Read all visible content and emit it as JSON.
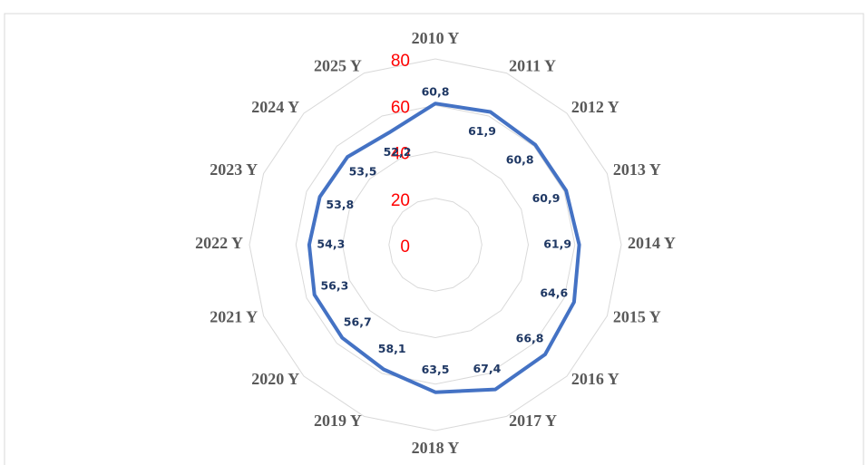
{
  "chart_data": {
    "type": "radar",
    "categories": [
      "2010 Y",
      "2011 Y",
      "2012 Y",
      "2013 Y",
      "2014 Y",
      "2015 Y",
      "2016 Y",
      "2017 Y",
      "2018 Y",
      "2019 Y",
      "2020 Y",
      "2021 Y",
      "2022 Y",
      "2023 Y",
      "2024 Y",
      "2025 Y"
    ],
    "series": [
      {
        "color": "#4472c4",
        "values": [
          60.8,
          61.9,
          60.8,
          60.9,
          61.9,
          64.6,
          66.8,
          67.4,
          63.5,
          58.1,
          56.7,
          56.3,
          54.3,
          53.8,
          53.5,
          52.2
        ],
        "value_labels": [
          "60,8",
          "61,9",
          "60,8",
          "60,9",
          "61,9",
          "64,6",
          "66,8",
          "67,4",
          "63,5",
          "58,1",
          "56,7",
          "56,3",
          "54,3",
          "53,8",
          "53,5",
          "52,2"
        ]
      }
    ],
    "ylim": [
      0,
      80
    ],
    "yticks": [
      0,
      20,
      40,
      60,
      80
    ],
    "grid": true
  }
}
